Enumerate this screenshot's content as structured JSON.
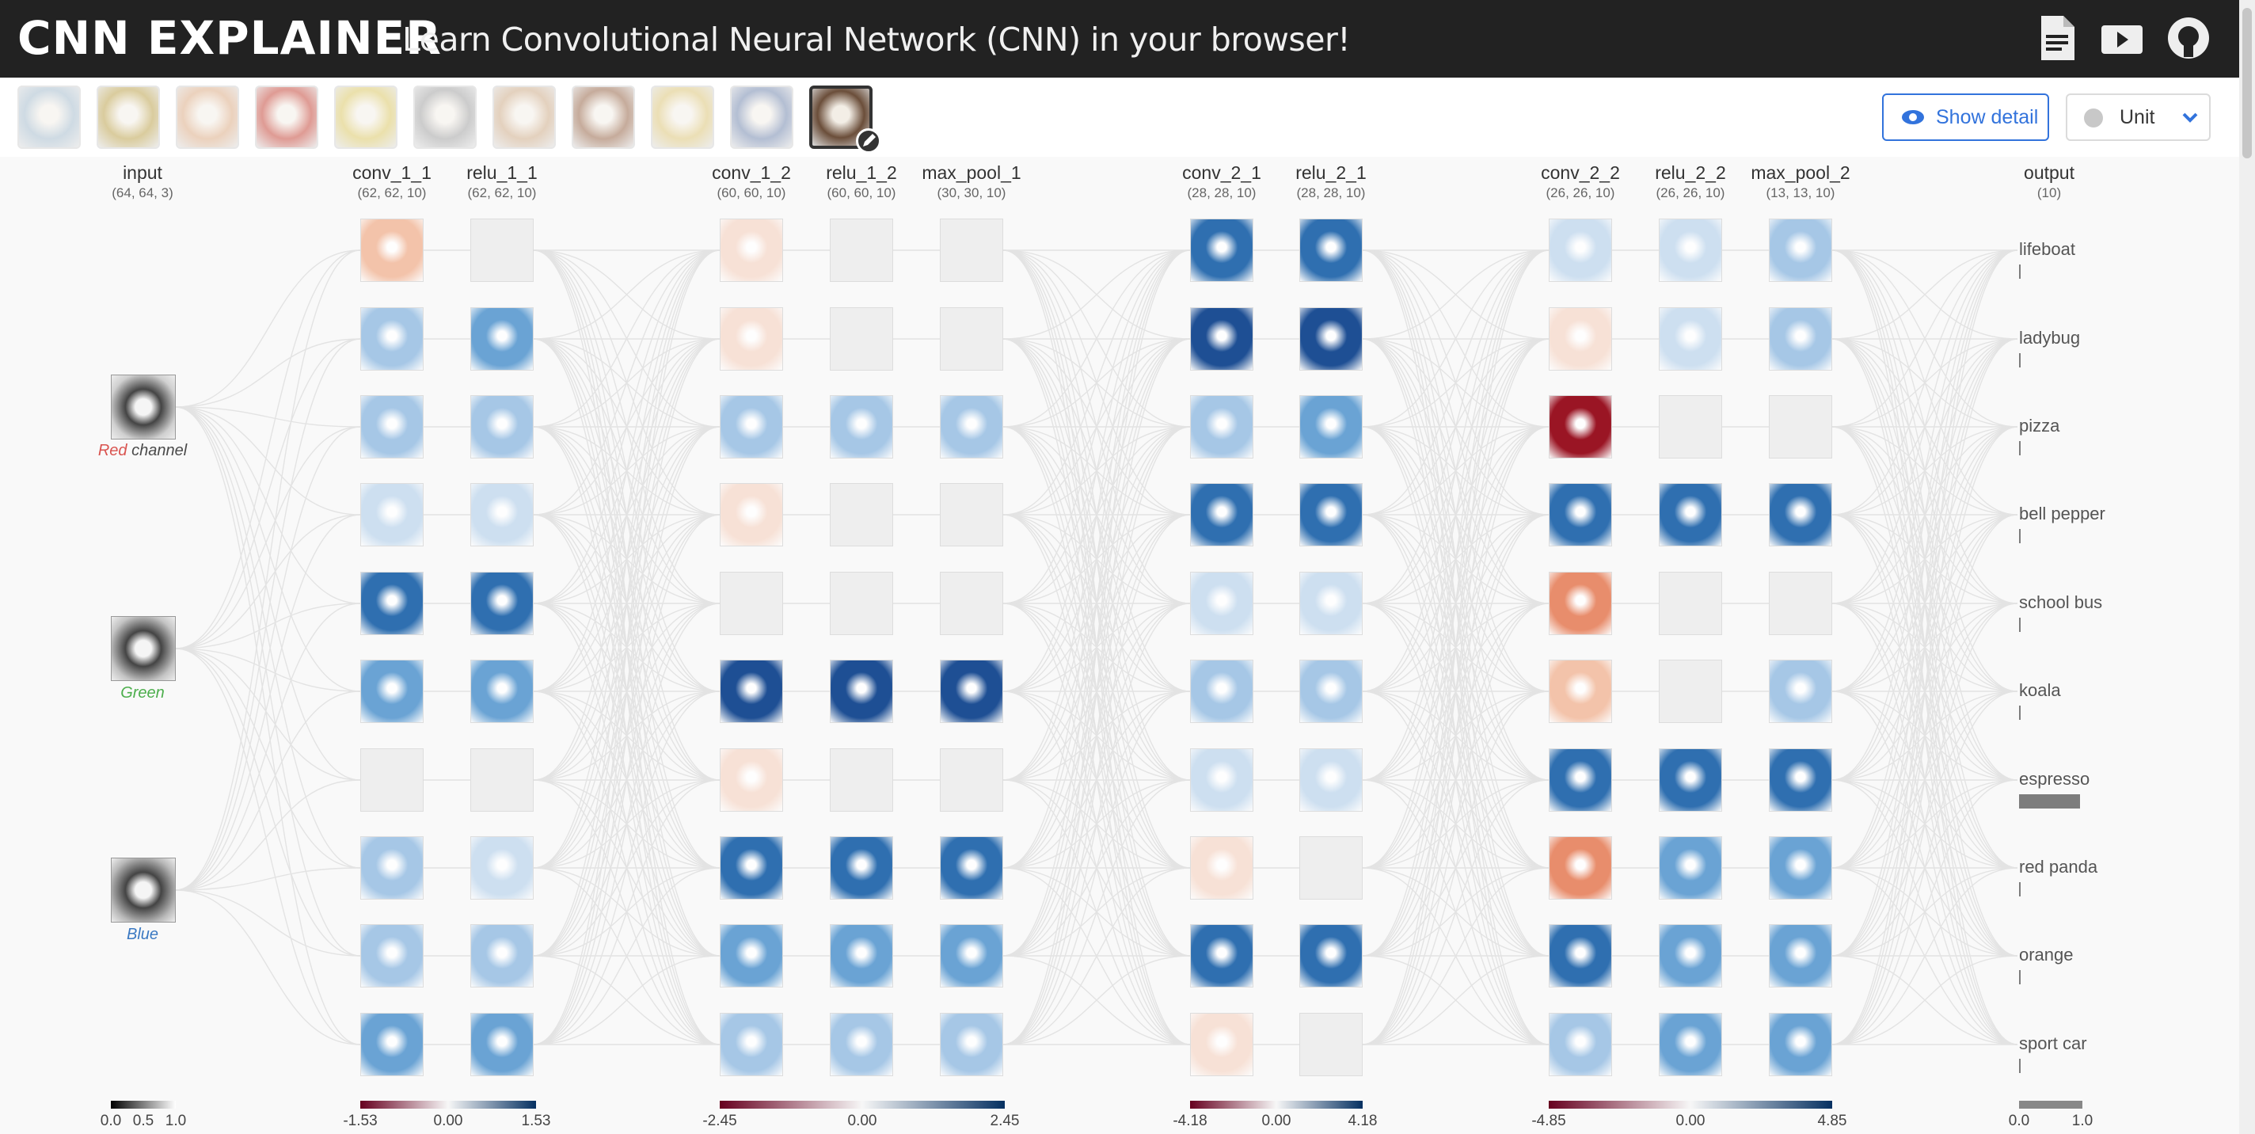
{
  "header": {
    "logo": "CNN EXPLAINER",
    "tagline": "Learn Convolutional Neural Network (CNN) in your browser!"
  },
  "toolbar": {
    "show_detail_label": "Show detail",
    "unit_label": "Unit"
  },
  "input": {
    "name": "input",
    "dims": "(64, 64, 3)",
    "channels": [
      {
        "label": "Red",
        "suffix": " channel",
        "color": "#d9534f"
      },
      {
        "label": "Green",
        "color": "#4cae4c"
      },
      {
        "label": "Blue",
        "color": "#3b79c2"
      }
    ]
  },
  "layers": [
    {
      "name": "conv_1_1",
      "dims": "(62, 62, 10)"
    },
    {
      "name": "relu_1_1",
      "dims": "(62, 62, 10)"
    },
    {
      "name": "conv_1_2",
      "dims": "(60, 60, 10)"
    },
    {
      "name": "relu_1_2",
      "dims": "(60, 60, 10)"
    },
    {
      "name": "max_pool_1",
      "dims": "(30, 30, 10)"
    },
    {
      "name": "conv_2_1",
      "dims": "(28, 28, 10)"
    },
    {
      "name": "relu_2_1",
      "dims": "(28, 28, 10)"
    },
    {
      "name": "conv_2_2",
      "dims": "(26, 26, 10)"
    },
    {
      "name": "relu_2_2",
      "dims": "(26, 26, 10)"
    },
    {
      "name": "max_pool_2",
      "dims": "(13, 13, 10)"
    }
  ],
  "output": {
    "name": "output",
    "dims": "(10)",
    "classes": [
      "lifeboat",
      "ladybug",
      "pizza",
      "bell pepper",
      "school bus",
      "koala",
      "espresso",
      "red panda",
      "orange",
      "sport car"
    ],
    "probabilities": [
      0.0,
      0.0,
      0.0,
      0.03,
      0.0,
      0.0,
      0.96,
      0.0,
      0.01,
      0.0
    ]
  },
  "legends": [
    {
      "ticks": [
        "0.0",
        "0.5",
        "1.0"
      ]
    },
    {
      "ticks": [
        "-1.53",
        "0.00",
        "1.53"
      ]
    },
    {
      "ticks": [
        "-2.45",
        "0.00",
        "2.45"
      ]
    },
    {
      "ticks": [
        "-4.18",
        "0.00",
        "4.18"
      ]
    },
    {
      "ticks": [
        "-4.85",
        "0.00",
        "4.85"
      ]
    },
    {
      "ticks": [
        "0.0",
        "1.0"
      ]
    }
  ],
  "icons": [
    "pdf-icon",
    "video-icon",
    "github-icon",
    "eye-icon",
    "palette-icon",
    "chevron-down-icon",
    "pencil-icon"
  ],
  "colors": {
    "negative": "#b2182b",
    "positive": "#2166ac",
    "accent": "#3273dc"
  }
}
